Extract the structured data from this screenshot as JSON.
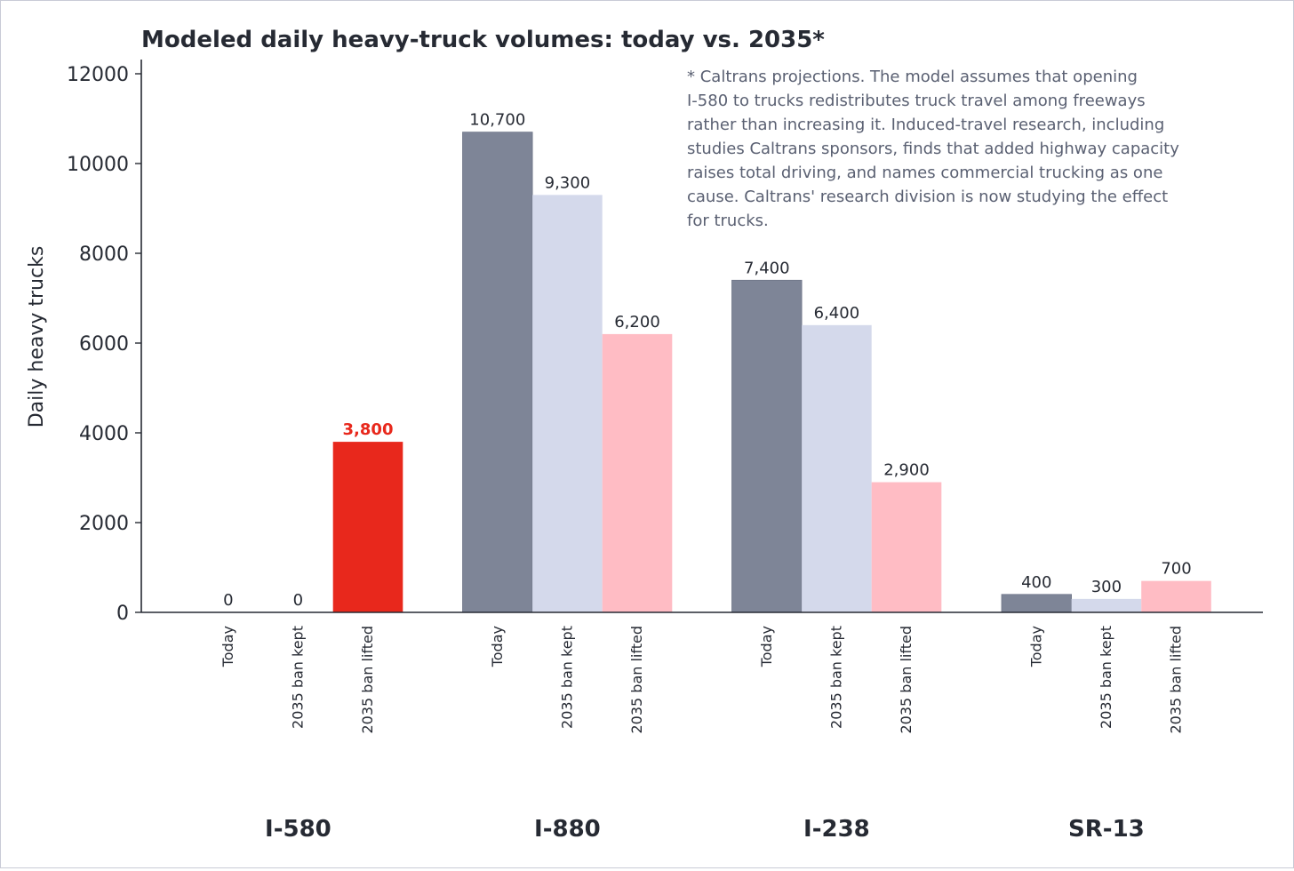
{
  "chart_data": {
    "type": "bar",
    "title": "Modeled daily heavy-truck volumes: today vs. 2035*",
    "ylabel": "Daily heavy trucks",
    "xlabel": "",
    "ylim": [
      0,
      12300
    ],
    "yticks": [
      0,
      2000,
      4000,
      6000,
      8000,
      10000,
      12000
    ],
    "grid": false,
    "scenarios": [
      "Today",
      "2035 ban kept",
      "2035 ban lifted"
    ],
    "groups": [
      {
        "name": "I-580",
        "bars": [
          {
            "scenario": "Today",
            "value": 0,
            "label": "0",
            "color": "#7e8597"
          },
          {
            "scenario": "2035 ban kept",
            "value": 0,
            "label": "0",
            "color": "#d4d9eb"
          },
          {
            "scenario": "2035 ban lifted",
            "value": 3800,
            "label": "3,800",
            "color": "#e8281c",
            "highlight": true
          }
        ]
      },
      {
        "name": "I-880",
        "bars": [
          {
            "scenario": "Today",
            "value": 10700,
            "label": "10,700",
            "color": "#7e8597"
          },
          {
            "scenario": "2035 ban kept",
            "value": 9300,
            "label": "9,300",
            "color": "#d4d9eb"
          },
          {
            "scenario": "2035 ban lifted",
            "value": 6200,
            "label": "6,200",
            "color": "#ffbcc4"
          }
        ]
      },
      {
        "name": "I-238",
        "bars": [
          {
            "scenario": "Today",
            "value": 7400,
            "label": "7,400",
            "color": "#7e8597"
          },
          {
            "scenario": "2035 ban kept",
            "value": 6400,
            "label": "6,400",
            "color": "#d4d9eb"
          },
          {
            "scenario": "2035 ban lifted",
            "value": 2900,
            "label": "2,900",
            "color": "#ffbcc4"
          }
        ]
      },
      {
        "name": "SR-13",
        "bars": [
          {
            "scenario": "Today",
            "value": 400,
            "label": "400",
            "color": "#7e8597"
          },
          {
            "scenario": "2035 ban kept",
            "value": 300,
            "label": "300",
            "color": "#d4d9eb"
          },
          {
            "scenario": "2035 ban lifted",
            "value": 700,
            "label": "700",
            "color": "#ffbcc4"
          }
        ]
      }
    ],
    "annotation": [
      "* Caltrans projections. The model assumes that opening",
      "I-580 to trucks redistributes truck travel among freeways",
      "rather than increasing it. Induced-travel research, including",
      "studies Caltrans sponsors, finds that added highway capacity",
      "raises total driving, and names commercial trucking as one",
      "cause. Caltrans' research division is now studying the effect",
      "for trucks."
    ]
  }
}
